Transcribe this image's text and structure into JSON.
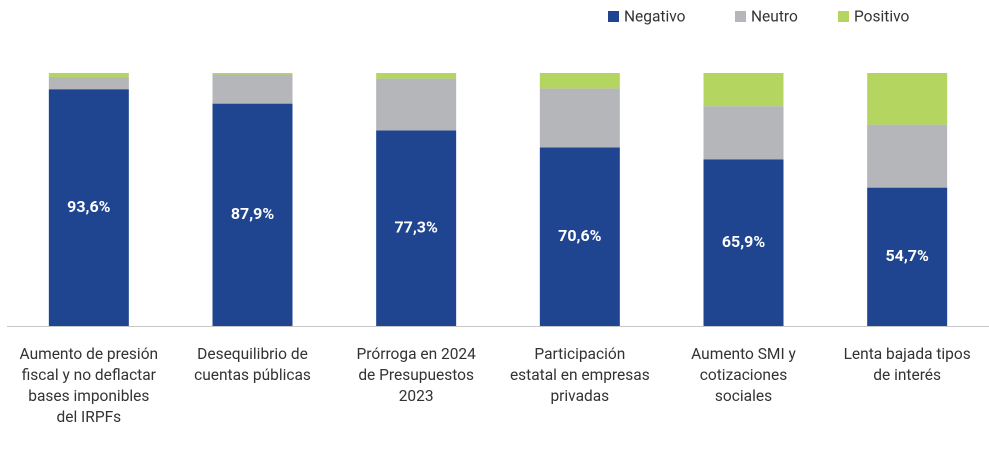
{
  "chart_data": {
    "type": "stacked_bar",
    "categories": [
      "Aumento de presión fiscal y no deflactar bases imponibles del IRPFs",
      "Desequilibrio de cuentas públicas",
      "Prórroga en 2024 de Presupuestos 2023",
      "Participación estatal en empresas privadas",
      "Aumento SMI y cotizaciones sociales",
      "Lenta bajada tipos de interés"
    ],
    "series": [
      {
        "name": "Negativo",
        "color": "#1f4590",
        "values": [
          93.6,
          87.9,
          77.3,
          70.6,
          65.9,
          54.7
        ],
        "value_labels": [
          "93,6%",
          "87,9%",
          "77,3%",
          "70,6%",
          "65,9%",
          "54,7%"
        ]
      },
      {
        "name": "Neutro",
        "color": "#b4b6b9",
        "values": [
          4.8,
          11.5,
          20.5,
          23.3,
          21.0,
          24.9
        ]
      },
      {
        "name": "Positivo",
        "color": "#b4d661",
        "values": [
          1.6,
          0.6,
          2.2,
          6.1,
          13.1,
          20.4
        ]
      }
    ],
    "ylim": [
      0,
      100
    ],
    "legend": "top-right"
  }
}
